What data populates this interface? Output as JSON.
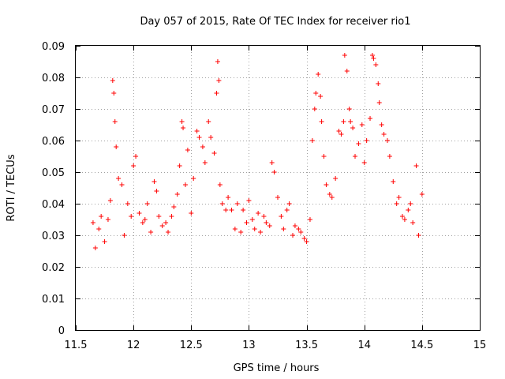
{
  "chart_data": {
    "type": "scatter",
    "title": "Day 057 of 2015, Rate Of TEC Index for receiver rio1",
    "xlabel": "GPS time / hours",
    "ylabel": "ROTI / TECUs",
    "xlim": [
      11.5,
      15
    ],
    "ylim": [
      0,
      0.09
    ],
    "x_ticks": [
      11.5,
      12,
      12.5,
      13,
      13.5,
      14,
      14.5,
      15
    ],
    "x_tick_labels": [
      "11.5",
      "12",
      "12.5",
      "13",
      "13.5",
      "14",
      "14.5",
      "15"
    ],
    "y_ticks": [
      0,
      0.01,
      0.02,
      0.03,
      0.04,
      0.05,
      0.06,
      0.07,
      0.08,
      0.09
    ],
    "y_tick_labels": [
      "0",
      "0.01",
      "0.02",
      "0.03",
      "0.04",
      "0.05",
      "0.06",
      "0.07",
      "0.08",
      "0.09"
    ],
    "grid": true,
    "marker": "+",
    "color": "#ff0000",
    "series": [
      {
        "name": "rio1",
        "x": [
          11.65,
          11.67,
          11.7,
          11.72,
          11.75,
          11.78,
          11.8,
          11.82,
          11.83,
          11.84,
          11.85,
          11.87,
          11.9,
          11.92,
          11.95,
          11.98,
          12.0,
          12.02,
          12.05,
          12.08,
          12.1,
          12.12,
          12.15,
          12.18,
          12.2,
          12.22,
          12.25,
          12.28,
          12.3,
          12.33,
          12.35,
          12.38,
          12.4,
          12.42,
          12.43,
          12.45,
          12.47,
          12.5,
          12.52,
          12.55,
          12.57,
          12.6,
          12.62,
          12.65,
          12.67,
          12.7,
          12.72,
          12.73,
          12.74,
          12.75,
          12.77,
          12.8,
          12.82,
          12.85,
          12.88,
          12.9,
          12.93,
          12.95,
          12.98,
          13.0,
          13.03,
          13.05,
          13.08,
          13.1,
          13.13,
          13.15,
          13.18,
          13.2,
          13.22,
          13.25,
          13.28,
          13.3,
          13.33,
          13.35,
          13.38,
          13.4,
          13.43,
          13.45,
          13.48,
          13.5,
          13.53,
          13.55,
          13.57,
          13.58,
          13.6,
          13.62,
          13.63,
          13.65,
          13.67,
          13.7,
          13.72,
          13.75,
          13.78,
          13.8,
          13.82,
          13.83,
          13.85,
          13.87,
          13.88,
          13.9,
          13.92,
          13.95,
          13.98,
          14.0,
          14.02,
          14.05,
          14.07,
          14.08,
          14.1,
          14.12,
          14.13,
          14.15,
          14.17,
          14.2,
          14.22,
          14.25,
          14.28,
          14.3,
          14.33,
          14.35,
          14.38,
          14.4,
          14.42,
          14.45,
          14.47,
          14.5
        ],
        "y": [
          0.034,
          0.026,
          0.032,
          0.036,
          0.028,
          0.035,
          0.041,
          0.079,
          0.075,
          0.066,
          0.058,
          0.048,
          0.046,
          0.03,
          0.04,
          0.036,
          0.052,
          0.055,
          0.037,
          0.034,
          0.035,
          0.04,
          0.031,
          0.047,
          0.044,
          0.036,
          0.033,
          0.034,
          0.031,
          0.036,
          0.039,
          0.043,
          0.052,
          0.066,
          0.064,
          0.046,
          0.057,
          0.037,
          0.048,
          0.063,
          0.061,
          0.058,
          0.053,
          0.066,
          0.061,
          0.056,
          0.075,
          0.085,
          0.079,
          0.046,
          0.04,
          0.038,
          0.042,
          0.038,
          0.032,
          0.04,
          0.031,
          0.038,
          0.034,
          0.041,
          0.035,
          0.032,
          0.037,
          0.031,
          0.036,
          0.034,
          0.033,
          0.053,
          0.05,
          0.042,
          0.036,
          0.032,
          0.038,
          0.04,
          0.03,
          0.033,
          0.032,
          0.031,
          0.029,
          0.028,
          0.035,
          0.06,
          0.07,
          0.075,
          0.081,
          0.074,
          0.066,
          0.055,
          0.046,
          0.043,
          0.042,
          0.048,
          0.063,
          0.062,
          0.066,
          0.087,
          0.082,
          0.07,
          0.066,
          0.064,
          0.055,
          0.059,
          0.065,
          0.053,
          0.06,
          0.067,
          0.087,
          0.086,
          0.084,
          0.078,
          0.072,
          0.065,
          0.062,
          0.06,
          0.055,
          0.047,
          0.04,
          0.042,
          0.036,
          0.035,
          0.038,
          0.04,
          0.034,
          0.052,
          0.03,
          0.043
        ]
      }
    ]
  }
}
